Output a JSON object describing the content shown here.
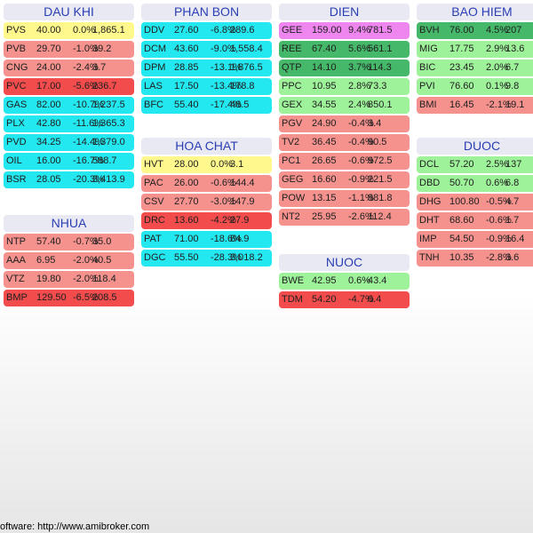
{
  "colors": {
    "strong_up": "#45b86a",
    "up": "#9ef29a",
    "flat": "#fff98d",
    "down": "#f5928e",
    "strong_down": "#f24c4c",
    "ceiling": "#ef86ef",
    "floor": "#23e8f0"
  },
  "columns": [
    {
      "groups": [
        {
          "name": "DAU KHI",
          "rows": [
            {
              "ticker": "PVS",
              "price": "40.00",
              "change": "0.0%",
              "volume": "1,865.1",
              "status": "flat"
            },
            {
              "ticker": "PVB",
              "price": "29.70",
              "change": "-1.0%",
              "volume": "39.2",
              "status": "down"
            },
            {
              "ticker": "CNG",
              "price": "24.00",
              "change": "-2.4%",
              "volume": "3.7",
              "status": "down"
            },
            {
              "ticker": "PVC",
              "price": "17.00",
              "change": "-5.6%",
              "volume": "236.7",
              "status": "strong_down"
            },
            {
              "ticker": "GAS",
              "price": "82.00",
              "change": "-10.7%",
              "volume": "1,237.5",
              "status": "floor"
            },
            {
              "ticker": "PLX",
              "price": "42.80",
              "change": "-11.6%",
              "volume": "1,365.3",
              "status": "floor"
            },
            {
              "ticker": "PVD",
              "price": "34.25",
              "change": "-14.4%",
              "volume": "1,379.0",
              "status": "floor"
            },
            {
              "ticker": "OIL",
              "price": "16.00",
              "change": "-16.7%",
              "volume": "588.7",
              "status": "floor"
            },
            {
              "ticker": "BSR",
              "price": "28.05",
              "change": "-20.3%",
              "volume": "3,413.9",
              "status": "floor"
            }
          ]
        },
        {
          "name": "NHUA",
          "rows": [
            {
              "ticker": "NTP",
              "price": "57.40",
              "change": "-0.7%",
              "volume": "35.0",
              "status": "down"
            },
            {
              "ticker": "AAA",
              "price": "6.95",
              "change": "-2.0%",
              "volume": "40.5",
              "status": "down"
            },
            {
              "ticker": "VTZ",
              "price": "19.80",
              "change": "-2.0%",
              "volume": "118.4",
              "status": "down"
            },
            {
              "ticker": "BMP",
              "price": "129.50",
              "change": "-6.5%",
              "volume": "208.5",
              "status": "strong_down"
            }
          ]
        }
      ]
    },
    {
      "groups": [
        {
          "name": "PHAN BON",
          "rows": [
            {
              "ticker": "DDV",
              "price": "27.60",
              "change": "-6.8%",
              "volume": "289.6",
              "status": "floor"
            },
            {
              "ticker": "DCM",
              "price": "43.60",
              "change": "-9.0%",
              "volume": "1,558.4",
              "status": "floor"
            },
            {
              "ticker": "DPM",
              "price": "28.85",
              "change": "-13.1%",
              "volume": "1,876.5",
              "status": "floor"
            },
            {
              "ticker": "LAS",
              "price": "17.50",
              "change": "-13.4%",
              "volume": "178.8",
              "status": "floor"
            },
            {
              "ticker": "BFC",
              "price": "55.40",
              "change": "-17.4%",
              "volume": "48.5",
              "status": "floor"
            }
          ]
        },
        {
          "name": "HOA CHAT",
          "rows": [
            {
              "ticker": "HVT",
              "price": "28.00",
              "change": "0.0%",
              "volume": "3.1",
              "status": "flat"
            },
            {
              "ticker": "PAC",
              "price": "26.00",
              "change": "-0.6%",
              "volume": "144.4",
              "status": "down"
            },
            {
              "ticker": "CSV",
              "price": "27.70",
              "change": "-3.0%",
              "volume": "147.9",
              "status": "down"
            },
            {
              "ticker": "DRC",
              "price": "13.60",
              "change": "-4.2%",
              "volume": "27.9",
              "status": "strong_down"
            },
            {
              "ticker": "PAT",
              "price": "71.00",
              "change": "-18.6%",
              "volume": "84.9",
              "status": "floor"
            },
            {
              "ticker": "DGC",
              "price": "55.50",
              "change": "-28.3%",
              "volume": "3,018.2",
              "status": "floor"
            }
          ]
        }
      ]
    },
    {
      "groups": [
        {
          "name": "DIEN",
          "rows": [
            {
              "ticker": "GEE",
              "price": "159.00",
              "change": "9.4%",
              "volume": "781.5",
              "status": "ceiling"
            },
            {
              "ticker": "REE",
              "price": "67.40",
              "change": "5.6%",
              "volume": "561.1",
              "status": "strong_up"
            },
            {
              "ticker": "QTP",
              "price": "14.10",
              "change": "3.7%",
              "volume": "114.3",
              "status": "strong_up"
            },
            {
              "ticker": "PPC",
              "price": "10.95",
              "change": "2.8%",
              "volume": "73.3",
              "status": "up"
            },
            {
              "ticker": "GEX",
              "price": "34.55",
              "change": "2.4%",
              "volume": "850.1",
              "status": "up"
            },
            {
              "ticker": "PGV",
              "price": "24.90",
              "change": "-0.4%",
              "volume": "3.4",
              "status": "down"
            },
            {
              "ticker": "TV2",
              "price": "36.45",
              "change": "-0.4%",
              "volume": "90.5",
              "status": "down"
            },
            {
              "ticker": "PC1",
              "price": "26.65",
              "change": "-0.6%",
              "volume": "972.5",
              "status": "down"
            },
            {
              "ticker": "GEG",
              "price": "16.60",
              "change": "-0.9%",
              "volume": "221.5",
              "status": "down"
            },
            {
              "ticker": "POW",
              "price": "13.15",
              "change": "-1.1%",
              "volume": "881.8",
              "status": "down"
            },
            {
              "ticker": "NT2",
              "price": "25.95",
              "change": "-2.6%",
              "volume": "112.4",
              "status": "down"
            }
          ]
        },
        {
          "name": "NUOC",
          "rows": [
            {
              "ticker": "BWE",
              "price": "42.95",
              "change": "0.6%",
              "volume": "43.4",
              "status": "up"
            },
            {
              "ticker": "TDM",
              "price": "54.20",
              "change": "-4.7%",
              "volume": "0.4",
              "status": "strong_down"
            }
          ]
        }
      ]
    },
    {
      "groups": [
        {
          "name": "BAO HIEM",
          "rows": [
            {
              "ticker": "BVH",
              "price": "76.00",
              "change": "4.5%",
              "volume": "207",
              "status": "strong_up"
            },
            {
              "ticker": "MIG",
              "price": "17.75",
              "change": "2.9%",
              "volume": "13.6",
              "status": "up"
            },
            {
              "ticker": "BIC",
              "price": "23.45",
              "change": "2.0%",
              "volume": "6.7",
              "status": "up"
            },
            {
              "ticker": "PVI",
              "price": "76.60",
              "change": "0.1%",
              "volume": "9.8",
              "status": "up"
            },
            {
              "ticker": "BMI",
              "price": "16.45",
              "change": "-2.1%",
              "volume": "19.1",
              "status": "down"
            }
          ]
        },
        {
          "name": "DUOC",
          "rows": [
            {
              "ticker": "DCL",
              "price": "57.20",
              "change": "2.5%",
              "volume": "137",
              "status": "up"
            },
            {
              "ticker": "DBD",
              "price": "50.70",
              "change": "0.6%",
              "volume": "6.8",
              "status": "up"
            },
            {
              "ticker": "DHG",
              "price": "100.80",
              "change": "-0.5%",
              "volume": "4.7",
              "status": "down"
            },
            {
              "ticker": "DHT",
              "price": "68.60",
              "change": "-0.6%",
              "volume": "1.7",
              "status": "down"
            },
            {
              "ticker": "IMP",
              "price": "54.50",
              "change": "-0.9%",
              "volume": "16.4",
              "status": "down"
            },
            {
              "ticker": "TNH",
              "price": "10.35",
              "change": "-2.8%",
              "volume": "3.6",
              "status": "down"
            }
          ]
        }
      ]
    }
  ],
  "footer": "oftware: http://www.amibroker.com"
}
